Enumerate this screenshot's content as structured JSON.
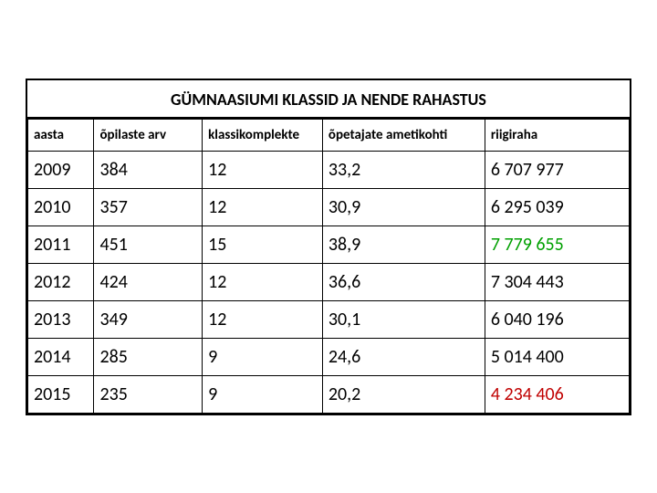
{
  "title": "GÜMNAASIUMI KLASSID JA NENDE RAHASTUS",
  "columns": [
    "aasta",
    "õpilaste arv",
    "klassikomplekte",
    "õpetajate ametikohti",
    "riigiraha"
  ],
  "column_widths_pct": [
    11,
    18,
    20,
    27,
    24
  ],
  "header_fontsize": 15,
  "body_fontsize": 20,
  "title_fontsize": 18,
  "border_color": "#000000",
  "background_color": "#ffffff",
  "riigiraha_colors": {
    "normal": "#000000",
    "green": "#00a000",
    "red": "#c00000"
  },
  "rows": [
    {
      "aasta": "2009",
      "opilaste_arv": "384",
      "klassikomplekte": "12",
      "opetajate_ametikohti": "33,2",
      "riigiraha": "6 707 977",
      "riigiraha_style": "normal"
    },
    {
      "aasta": "2010",
      "opilaste_arv": "357",
      "klassikomplekte": "12",
      "opetajate_ametikohti": "30,9",
      "riigiraha": "6 295 039",
      "riigiraha_style": "normal"
    },
    {
      "aasta": "2011",
      "opilaste_arv": "451",
      "klassikomplekte": "15",
      "opetajate_ametikohti": "38,9",
      "riigiraha": "7 779 655",
      "riigiraha_style": "green"
    },
    {
      "aasta": "2012",
      "opilaste_arv": "424",
      "klassikomplekte": "12",
      "opetajate_ametikohti": "36,6",
      "riigiraha": "7 304 443",
      "riigiraha_style": "normal"
    },
    {
      "aasta": "2013",
      "opilaste_arv": "349",
      "klassikomplekte": "12",
      "opetajate_ametikohti": "30,1",
      "riigiraha": "6 040 196",
      "riigiraha_style": "normal"
    },
    {
      "aasta": "2014",
      "opilaste_arv": "285",
      "klassikomplekte": "9",
      "opetajate_ametikohti": "24,6",
      "riigiraha": "5 014 400",
      "riigiraha_style": "normal"
    },
    {
      "aasta": "2015",
      "opilaste_arv": "235",
      "klassikomplekte": "9",
      "opetajate_ametikohti": "20,2",
      "riigiraha": "4 234 406",
      "riigiraha_style": "red"
    }
  ]
}
